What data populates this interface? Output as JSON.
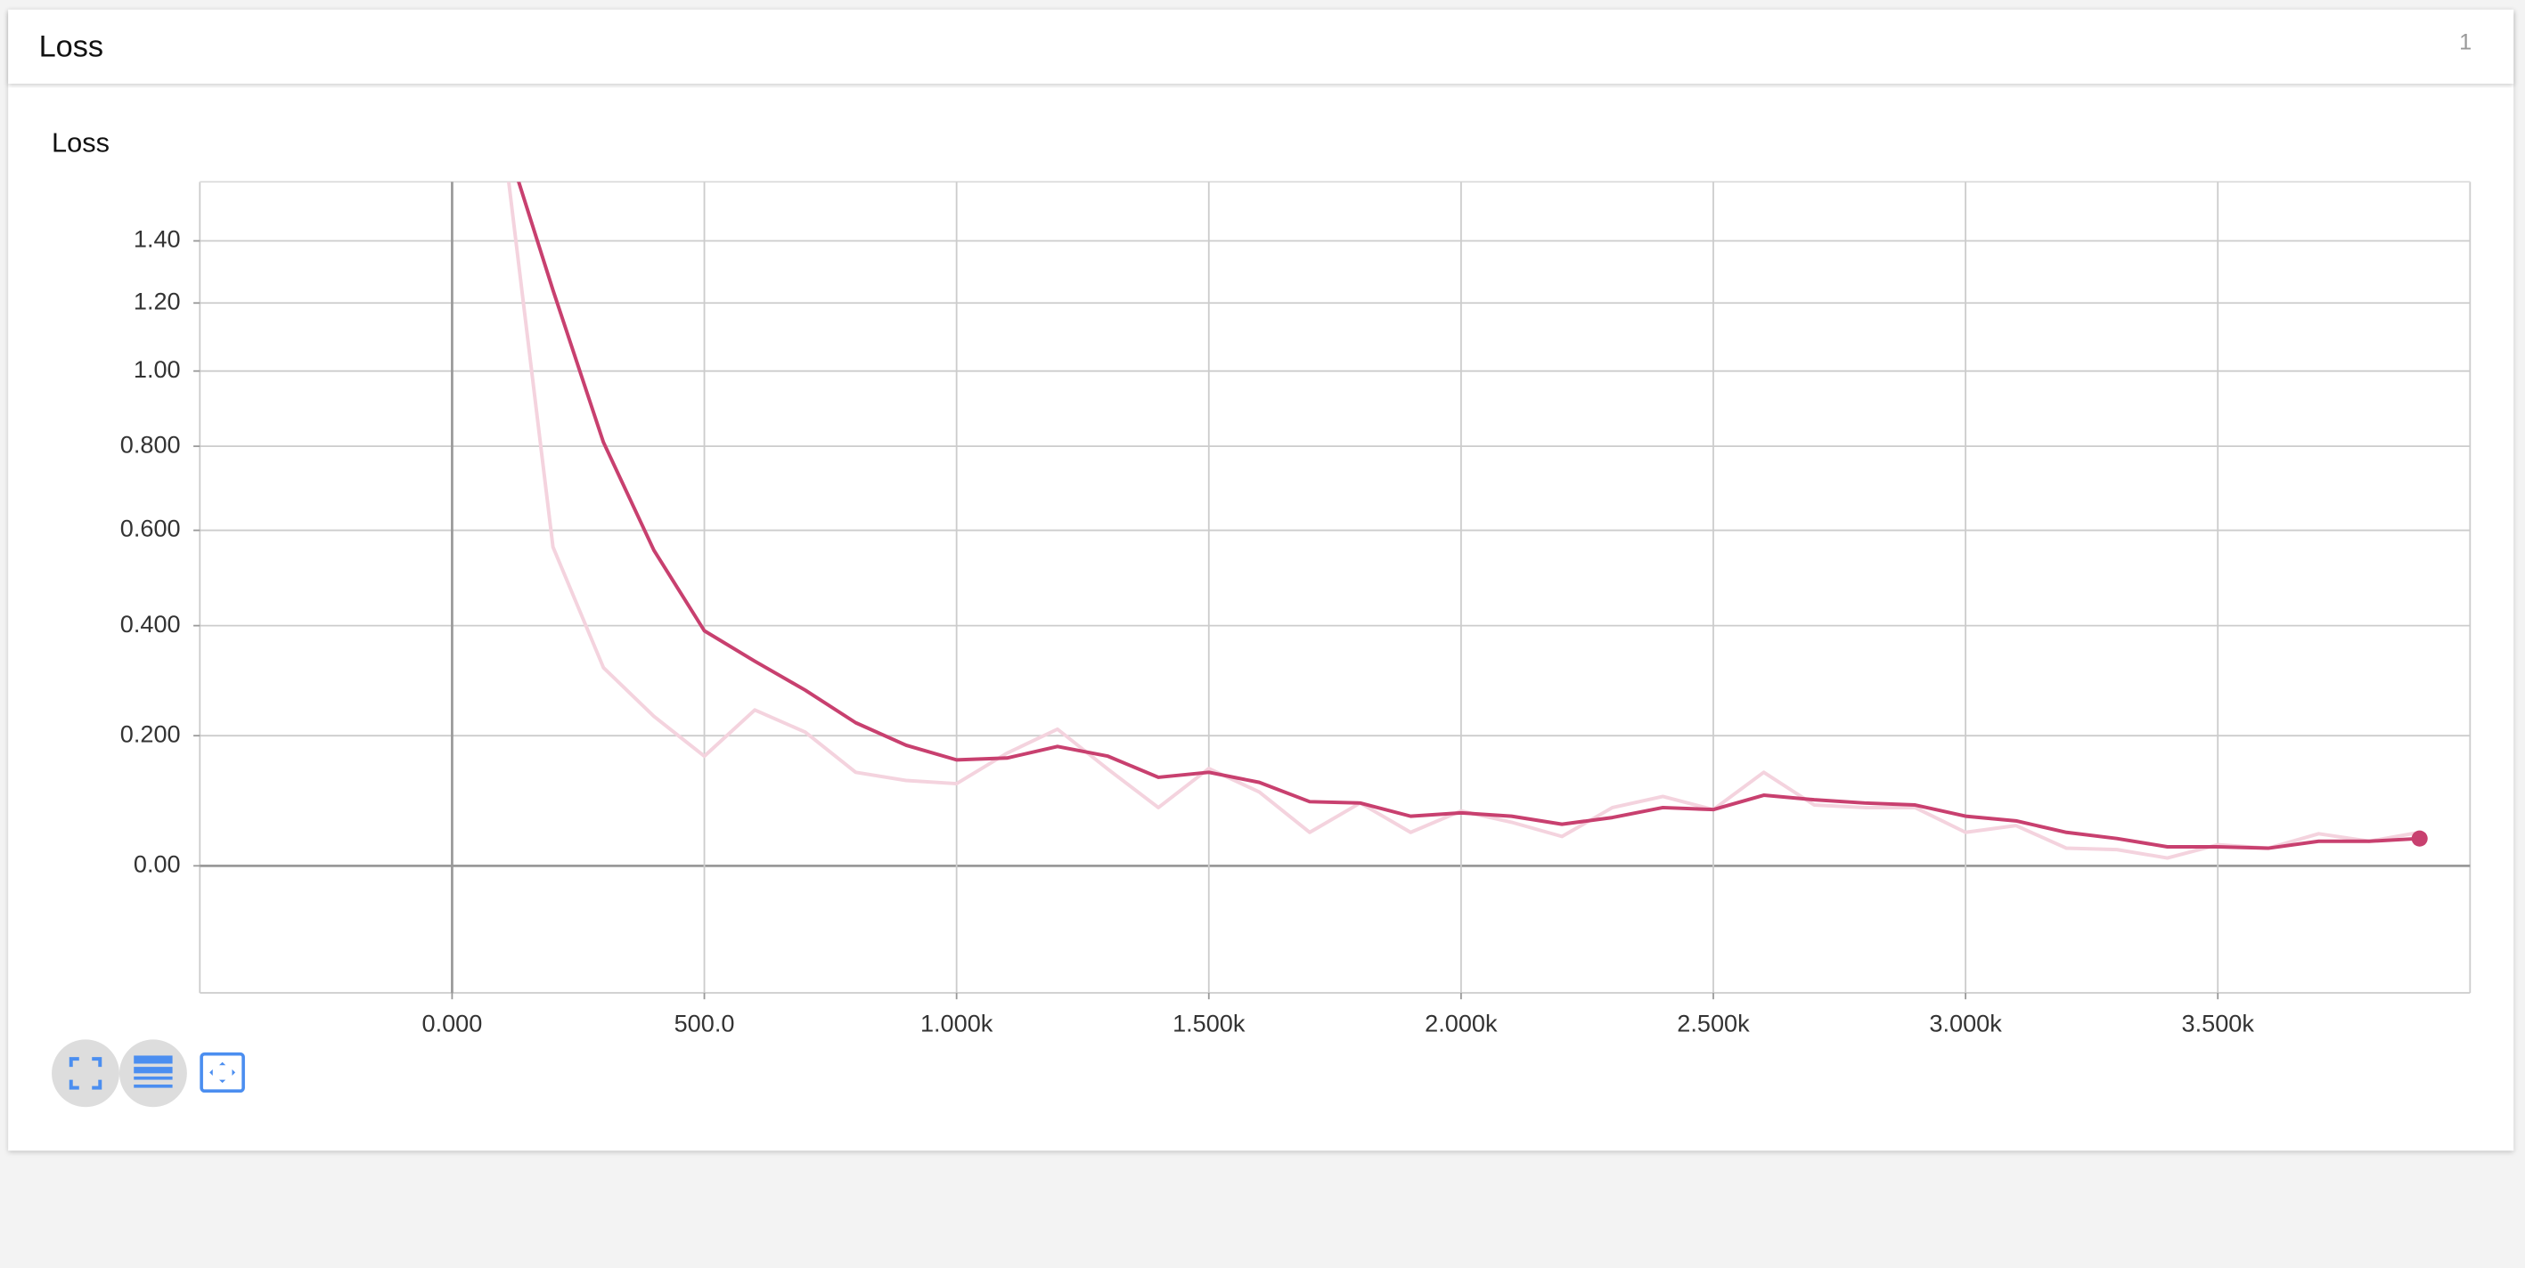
{
  "card": {
    "title": "Loss",
    "count": "1"
  },
  "chart_data": {
    "type": "line",
    "title": "Loss",
    "yscale": "log1p",
    "x": [
      100,
      200,
      300,
      400,
      500,
      600,
      700,
      800,
      900,
      1000,
      1100,
      1200,
      1300,
      1400,
      1500,
      1600,
      1700,
      1800,
      1900,
      2000,
      2100,
      2200,
      2300,
      2400,
      2500,
      2600,
      2700,
      2800,
      2900,
      3000,
      3100,
      3200,
      3300,
      3400,
      3500,
      3600,
      3700,
      3800,
      3900
    ],
    "series": [
      {
        "color": "#c8406f",
        "values": [
          1.8,
          1.24,
          0.81,
          0.556,
          0.39,
          0.332,
          0.279,
          0.222,
          0.184,
          0.16,
          0.163,
          0.182,
          0.166,
          0.132,
          0.14,
          0.124,
          0.094,
          0.092,
          0.072,
          0.077,
          0.072,
          0.06,
          0.07,
          0.085,
          0.082,
          0.104,
          0.097,
          0.092,
          0.089,
          0.072,
          0.065,
          0.048,
          0.039,
          0.027,
          0.027,
          0.025,
          0.035,
          0.035,
          0.039
        ]
      },
      {
        "color": "#f4d3de",
        "values": [
          1.8,
          0.563,
          0.32,
          0.233,
          0.166,
          0.244,
          0.206,
          0.14,
          0.127,
          0.122,
          0.171,
          0.211,
          0.145,
          0.085,
          0.146,
          0.109,
          0.048,
          0.092,
          0.048,
          0.08,
          0.063,
          0.042,
          0.085,
          0.102,
          0.082,
          0.14,
          0.089,
          0.085,
          0.085,
          0.048,
          0.058,
          0.025,
          0.023,
          0.011,
          0.03,
          0.025,
          0.046,
          0.035,
          0.048
        ]
      }
    ],
    "xlim": [
      -500,
      4000
    ],
    "xticks": [
      {
        "value": 0,
        "label": "0.000"
      },
      {
        "value": 500,
        "label": "500.0"
      },
      {
        "value": 1000,
        "label": "1.000k"
      },
      {
        "value": 1500,
        "label": "1.500k"
      },
      {
        "value": 2000,
        "label": "2.000k"
      },
      {
        "value": 2500,
        "label": "2.500k"
      },
      {
        "value": 3000,
        "label": "3.000k"
      },
      {
        "value": 3500,
        "label": "3.500k"
      }
    ],
    "ylim": [
      -0.163,
      1.607
    ],
    "yticks": [
      {
        "value": 0,
        "label": "0.00"
      },
      {
        "value": 0.2,
        "label": "0.200"
      },
      {
        "value": 0.4,
        "label": "0.400"
      },
      {
        "value": 0.6,
        "label": "0.600"
      },
      {
        "value": 0.8,
        "label": "0.800"
      },
      {
        "value": 1,
        "label": "1.00"
      },
      {
        "value": 1.2,
        "label": "1.20"
      },
      {
        "value": 1.4,
        "label": "1.40"
      }
    ],
    "grid": true
  }
}
